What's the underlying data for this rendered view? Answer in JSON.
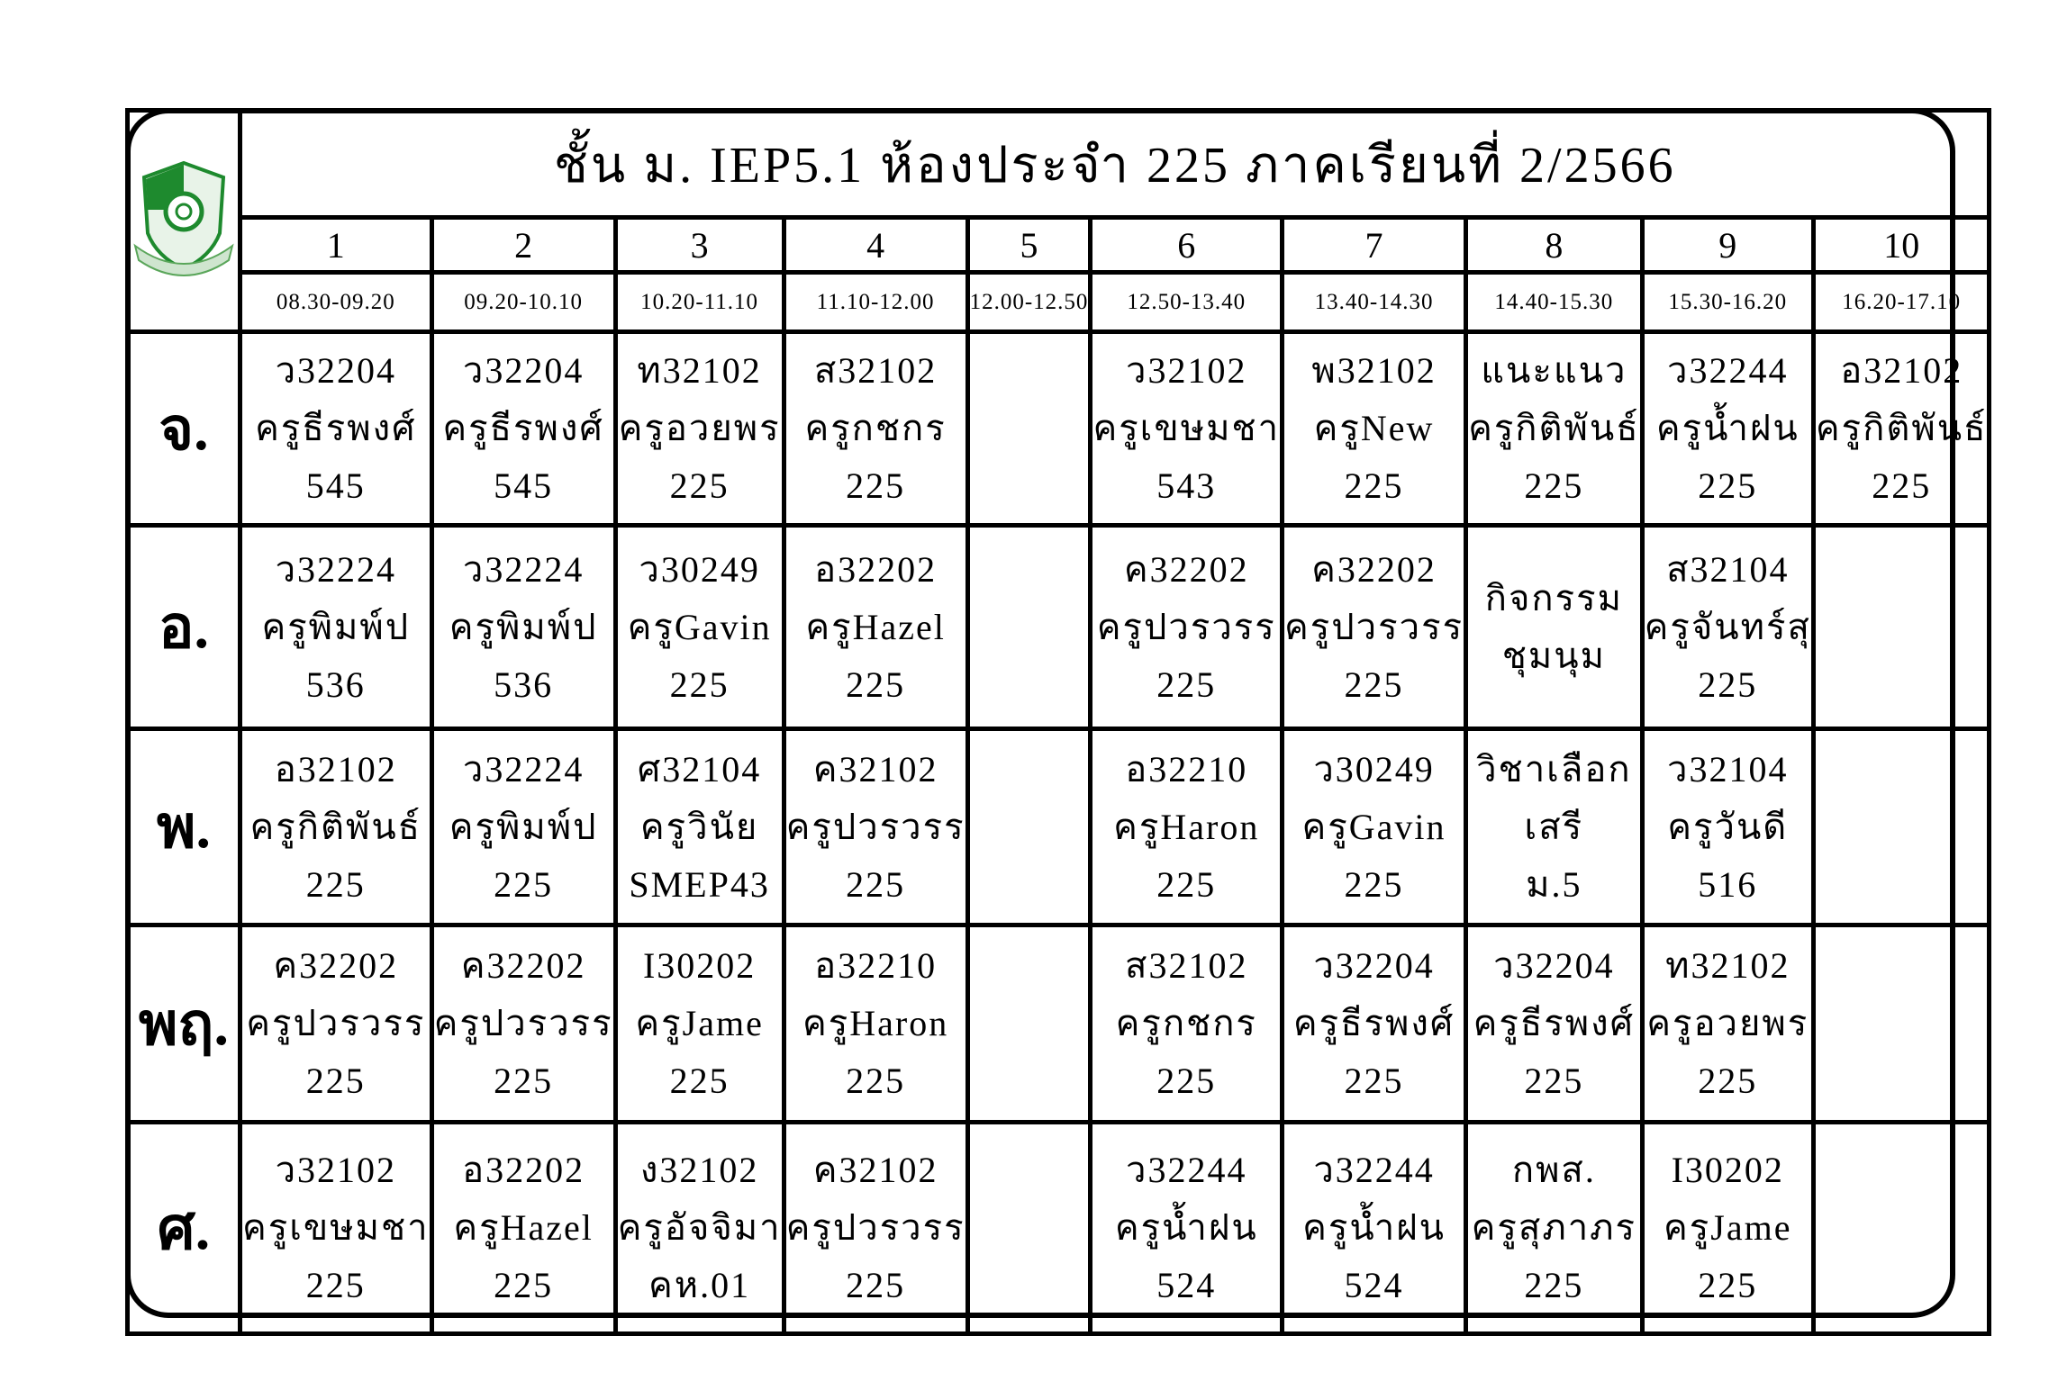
{
  "title": "ชั้น ม. IEP5.1 ห้องประจำ 225 ภาคเรียนที่ 2/2566",
  "logo": {
    "icon": "school-shield-logo",
    "color": "#1e8a2e"
  },
  "periods": [
    {
      "number": "1",
      "time": "08.30-09.20"
    },
    {
      "number": "2",
      "time": "09.20-10.10"
    },
    {
      "number": "3",
      "time": "10.20-11.10"
    },
    {
      "number": "4",
      "time": "11.10-12.00"
    },
    {
      "number": "5",
      "time": "12.00-12.50"
    },
    {
      "number": "6",
      "time": "12.50-13.40"
    },
    {
      "number": "7",
      "time": "13.40-14.30"
    },
    {
      "number": "8",
      "time": "14.40-15.30"
    },
    {
      "number": "9",
      "time": "15.30-16.20"
    },
    {
      "number": "10",
      "time": "16.20-17.10"
    }
  ],
  "days": [
    {
      "label": "จ.",
      "cells": [
        [
          "ว32204",
          "ครูธีรพงศ์",
          "545"
        ],
        [
          "ว32204",
          "ครูธีรพงศ์",
          "545"
        ],
        [
          "ท32102",
          "ครูอวยพร",
          "225"
        ],
        [
          "ส32102",
          "ครูกชกร",
          "225"
        ],
        [
          "",
          "",
          ""
        ],
        [
          "ว32102",
          "ครูเขษมชา",
          "543"
        ],
        [
          "พ32102",
          "ครูNew",
          "225"
        ],
        [
          "แนะแนว",
          "ครูกิติพันธ์",
          "225"
        ],
        [
          "ว32244",
          "ครูน้ำฝน",
          "225"
        ],
        [
          "อ32102",
          "ครูกิติพันธ์",
          "225"
        ]
      ]
    },
    {
      "label": "อ.",
      "cells": [
        [
          "ว32224",
          "ครูพิมพ์ป",
          "536"
        ],
        [
          "ว32224",
          "ครูพิมพ์ป",
          "536"
        ],
        [
          "ว30249",
          "ครูGavin",
          "225"
        ],
        [
          "อ32202",
          "ครูHazel",
          "225"
        ],
        [
          "",
          "",
          ""
        ],
        [
          "ค32202",
          "ครูปวรวรร",
          "225"
        ],
        [
          "ค32202",
          "ครูปวรวรร",
          "225"
        ],
        [
          "กิจกรรม",
          "ชุมนุม",
          ""
        ],
        [
          "ส32104",
          "ครูจันทร์สุ",
          "225"
        ],
        [
          "",
          "",
          ""
        ]
      ]
    },
    {
      "label": "พ.",
      "cells": [
        [
          "อ32102",
          "ครูกิติพันธ์",
          "225"
        ],
        [
          "ว32224",
          "ครูพิมพ์ป",
          "225"
        ],
        [
          "ศ32104",
          "ครูวินัย",
          "SMEP43"
        ],
        [
          "ค32102",
          "ครูปวรวรร",
          "225"
        ],
        [
          "",
          "",
          ""
        ],
        [
          "อ32210",
          "ครูHaron",
          "225"
        ],
        [
          "ว30249",
          "ครูGavin",
          "225"
        ],
        [
          "วิชาเลือก",
          "เสรี",
          "ม.5"
        ],
        [
          "ว32104",
          "ครูวันดี",
          "516"
        ],
        [
          "",
          "",
          ""
        ]
      ]
    },
    {
      "label": "พฤ.",
      "cells": [
        [
          "ค32202",
          "ครูปวรวรร",
          "225"
        ],
        [
          "ค32202",
          "ครูปวรวรร",
          "225"
        ],
        [
          "I30202",
          "ครูJame",
          "225"
        ],
        [
          "อ32210",
          "ครูHaron",
          "225"
        ],
        [
          "",
          "",
          ""
        ],
        [
          "ส32102",
          "ครูกชกร",
          "225"
        ],
        [
          "ว32204",
          "ครูธีรพงศ์",
          "225"
        ],
        [
          "ว32204",
          "ครูธีรพงศ์",
          "225"
        ],
        [
          "ท32102",
          "ครูอวยพร",
          "225"
        ],
        [
          "",
          "",
          ""
        ]
      ]
    },
    {
      "label": "ศ.",
      "cells": [
        [
          "ว32102",
          "ครูเขษมชา",
          "225"
        ],
        [
          "อ32202",
          "ครูHazel",
          "225"
        ],
        [
          "ง32102",
          "ครูอัจจิมา",
          "คห.01"
        ],
        [
          "ค32102",
          "ครูปวรวรร",
          "225"
        ],
        [
          "",
          "",
          ""
        ],
        [
          "ว32244",
          "ครูน้ำฝน",
          "524"
        ],
        [
          "ว32244",
          "ครูน้ำฝน",
          "524"
        ],
        [
          "กพส.",
          "ครูสุภาภร",
          "225"
        ],
        [
          "I30202",
          "ครูJame",
          "225"
        ],
        [
          "",
          "",
          ""
        ]
      ]
    }
  ]
}
